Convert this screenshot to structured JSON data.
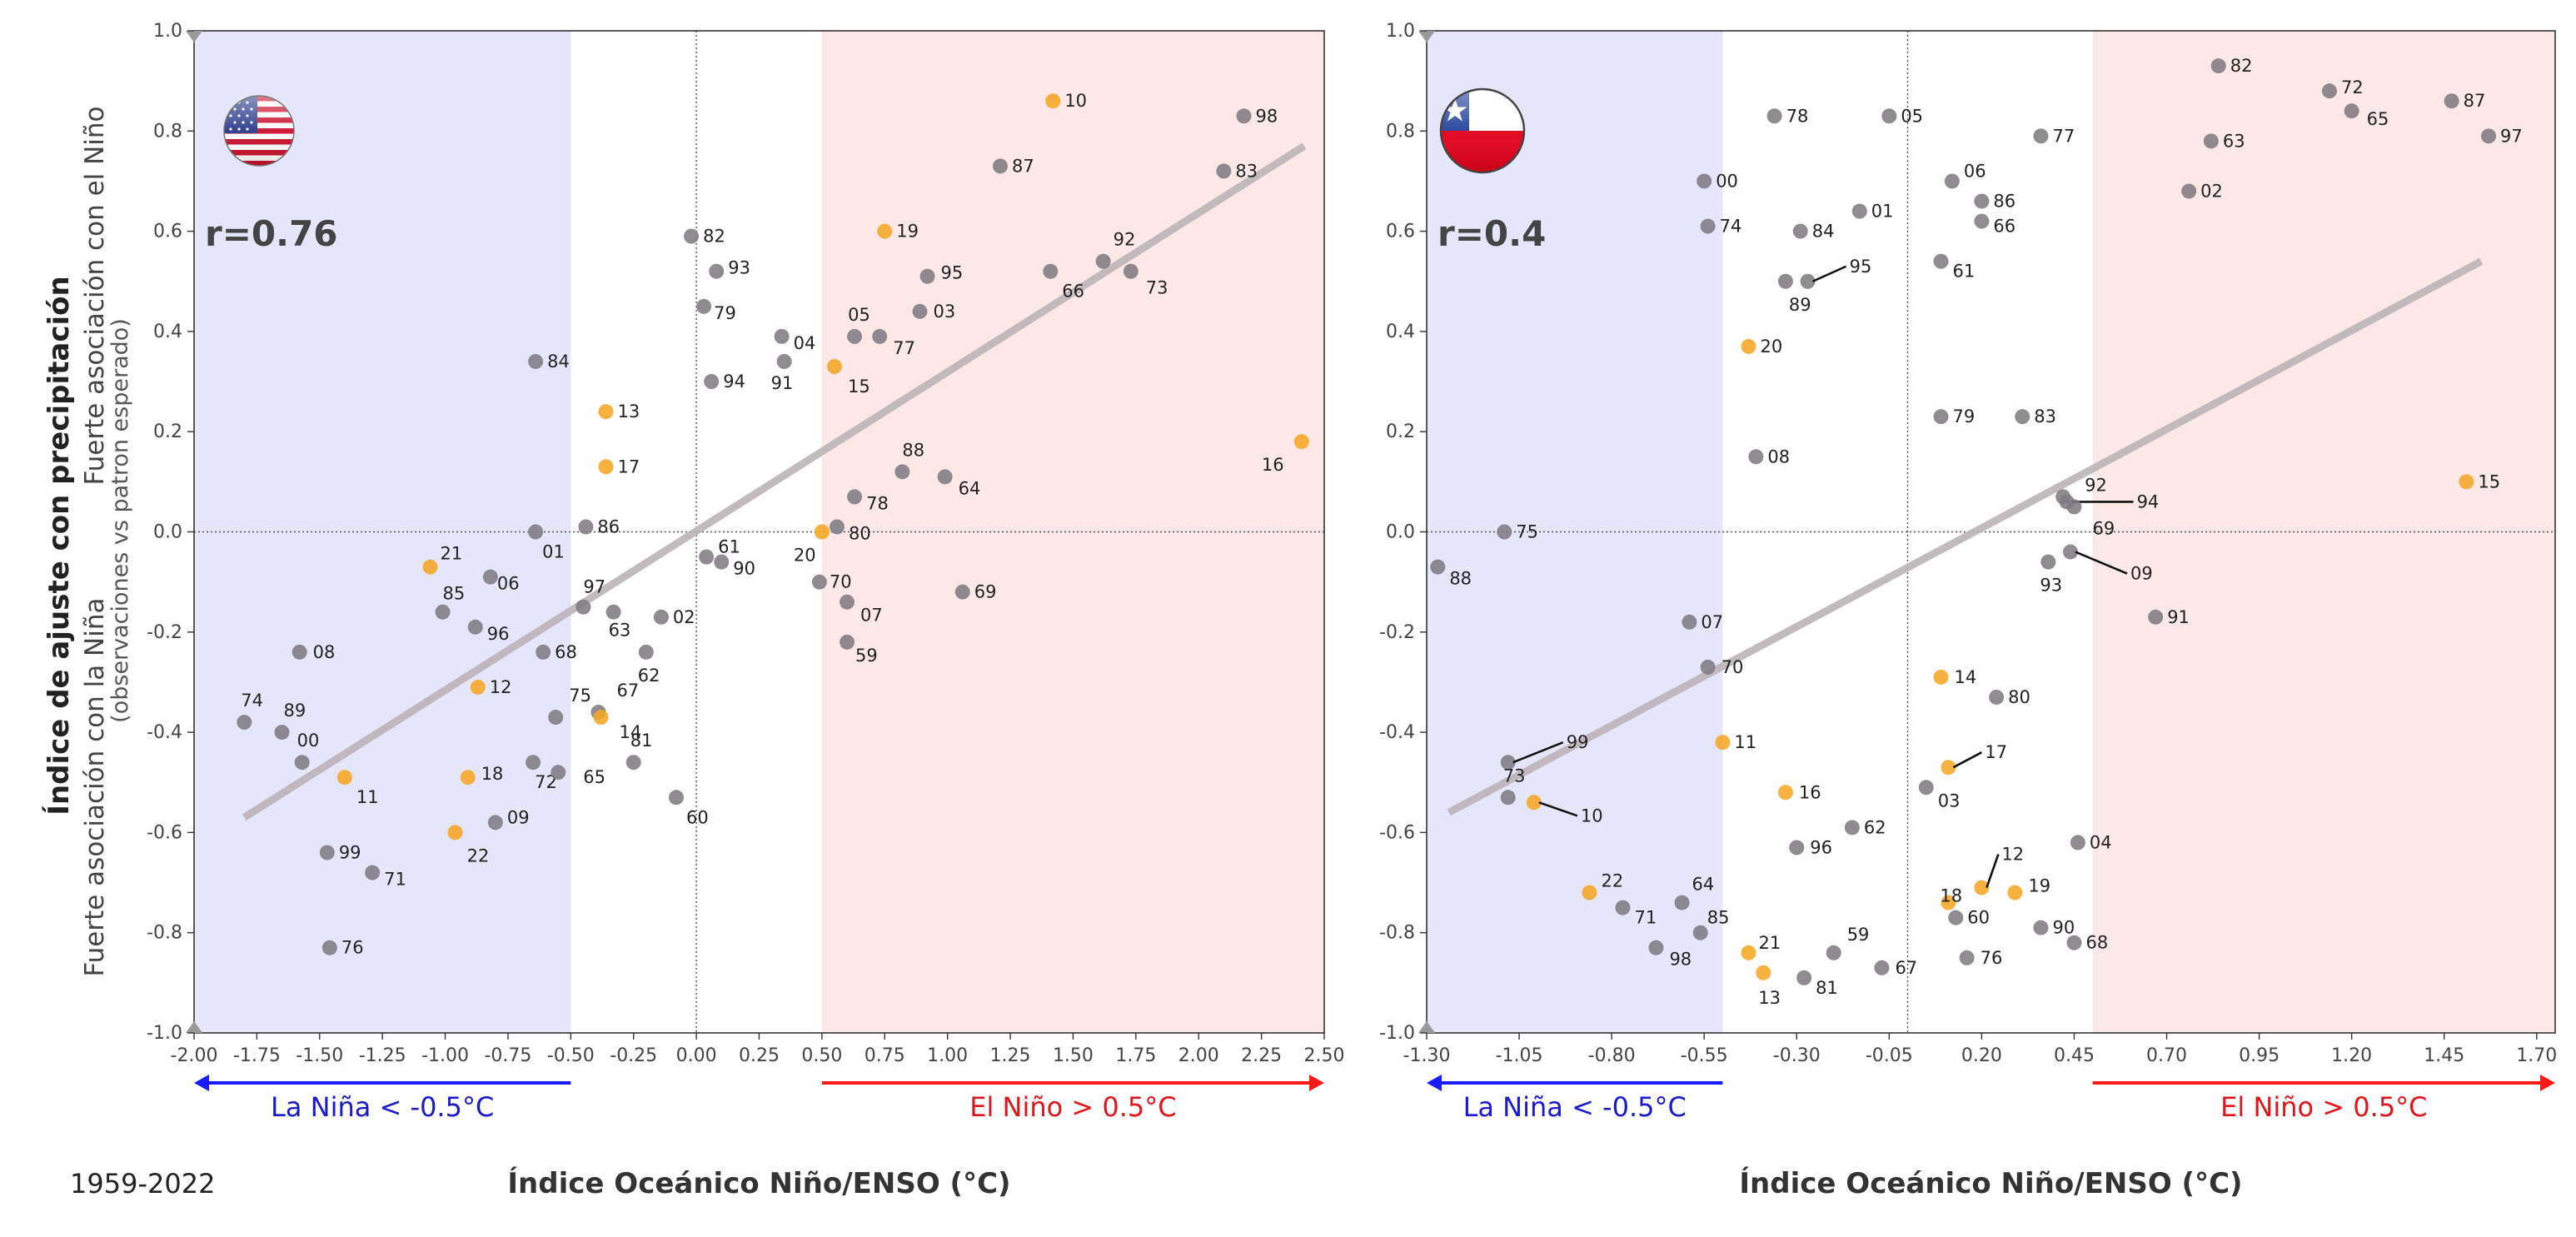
{
  "figure": {
    "period": "1959-2022",
    "y_title_main": "Índice de ajuste con precipitación",
    "y_title_top": "Fuerte asociación con el Niño",
    "y_title_bottom": "Fuerte asociación con la Niña",
    "y_title_note": "(observaciones vs patron esperado)",
    "colors": {
      "nina_band": "#e6e6fb",
      "nino_band": "#fde8e8",
      "point_gray": "#7f7b82",
      "point_orange": "#f5a623",
      "trend": "#bcb4b8",
      "nina_arrow": "#1a1aff",
      "nino_arrow": "#ff1a1a"
    }
  },
  "chart_data": [
    {
      "type": "scatter",
      "panel": "usa",
      "flag_icon": "usa-flag-icon",
      "r_label": "r=0.76",
      "xlabel": "Índice Oceánico Niño/ENSO (°C)",
      "xlim": [
        -2.0,
        2.5
      ],
      "ylim": [
        -1.0,
        1.0
      ],
      "xticks": [
        "-2.00",
        "-1.75",
        "-1.50",
        "-1.25",
        "-1.00",
        "-0.75",
        "-0.50",
        "-0.25",
        "0.00",
        "0.25",
        "0.50",
        "0.75",
        "1.00",
        "1.25",
        "1.50",
        "1.75",
        "2.00",
        "2.25",
        "2.50"
      ],
      "xtick_values": [
        -2.0,
        -1.75,
        -1.5,
        -1.25,
        -1.0,
        -0.75,
        -0.5,
        -0.25,
        0.0,
        0.25,
        0.5,
        0.75,
        1.0,
        1.25,
        1.5,
        1.75,
        2.0,
        2.25,
        2.5
      ],
      "yticks": [
        "-1.0",
        "-0.8",
        "-0.6",
        "-0.4",
        "-0.2",
        "0.0",
        "0.2",
        "0.4",
        "0.6",
        "0.8",
        "1.0"
      ],
      "ytick_values": [
        -1.0,
        -0.8,
        -0.6,
        -0.4,
        -0.2,
        0.0,
        0.2,
        0.4,
        0.6,
        0.8,
        1.0
      ],
      "nina_band": [
        -2.0,
        -0.5
      ],
      "nino_band": [
        0.5,
        2.5
      ],
      "nina_label": "La Niña < -0.5°C",
      "nino_label": "El Niño > 0.5°C",
      "trend": [
        [
          -1.8,
          -0.57
        ],
        [
          2.42,
          0.77
        ]
      ],
      "points": [
        {
          "label": "82",
          "x": -0.02,
          "y": 0.59,
          "c": "g"
        },
        {
          "label": "93",
          "x": 0.08,
          "y": 0.52,
          "c": "g"
        },
        {
          "label": "79",
          "x": 0.03,
          "y": 0.45,
          "c": "g"
        },
        {
          "label": "04",
          "x": 0.34,
          "y": 0.39,
          "c": "g"
        },
        {
          "label": "91",
          "x": 0.35,
          "y": 0.34,
          "c": "g"
        },
        {
          "label": "94",
          "x": 0.06,
          "y": 0.3,
          "c": "g"
        },
        {
          "label": "05",
          "x": 0.63,
          "y": 0.39,
          "c": "g"
        },
        {
          "label": "77",
          "x": 0.73,
          "y": 0.39,
          "c": "g"
        },
        {
          "label": "15",
          "x": 0.55,
          "y": 0.33,
          "c": "o"
        },
        {
          "label": "19",
          "x": 0.75,
          "y": 0.6,
          "c": "o"
        },
        {
          "label": "95",
          "x": 0.92,
          "y": 0.51,
          "c": "g"
        },
        {
          "label": "03",
          "x": 0.89,
          "y": 0.44,
          "c": "g"
        },
        {
          "label": "10",
          "x": 1.42,
          "y": 0.86,
          "c": "o"
        },
        {
          "label": "87",
          "x": 1.21,
          "y": 0.73,
          "c": "g"
        },
        {
          "label": "98",
          "x": 2.18,
          "y": 0.83,
          "c": "g"
        },
        {
          "label": "83",
          "x": 2.1,
          "y": 0.72,
          "c": "g"
        },
        {
          "label": "92",
          "x": 1.62,
          "y": 0.54,
          "c": "g"
        },
        {
          "label": "66",
          "x": 1.41,
          "y": 0.52,
          "c": "g"
        },
        {
          "label": "73",
          "x": 1.73,
          "y": 0.52,
          "c": "g"
        },
        {
          "label": "88",
          "x": 0.82,
          "y": 0.12,
          "c": "g"
        },
        {
          "label": "64",
          "x": 0.99,
          "y": 0.11,
          "c": "g"
        },
        {
          "label": "78",
          "x": 0.63,
          "y": 0.07,
          "c": "g"
        },
        {
          "label": "16",
          "x": 2.41,
          "y": 0.18,
          "c": "o"
        },
        {
          "label": "80",
          "x": 0.56,
          "y": 0.01,
          "c": "g"
        },
        {
          "label": "20",
          "x": 0.5,
          "y": 0.0,
          "c": "o"
        },
        {
          "label": "61",
          "x": 0.04,
          "y": -0.05,
          "c": "g"
        },
        {
          "label": "90",
          "x": 0.1,
          "y": -0.06,
          "c": "g"
        },
        {
          "label": "70",
          "x": 0.49,
          "y": -0.1,
          "c": "g"
        },
        {
          "label": "07",
          "x": 0.6,
          "y": -0.14,
          "c": "g"
        },
        {
          "label": "59",
          "x": 0.6,
          "y": -0.22,
          "c": "g"
        },
        {
          "label": "69",
          "x": 1.06,
          "y": -0.12,
          "c": "g"
        },
        {
          "label": "84",
          "x": -0.64,
          "y": 0.34,
          "c": "g"
        },
        {
          "label": "13",
          "x": -0.36,
          "y": 0.24,
          "c": "o"
        },
        {
          "label": "17",
          "x": -0.36,
          "y": 0.13,
          "c": "o"
        },
        {
          "label": "86",
          "x": -0.44,
          "y": 0.01,
          "c": "g"
        },
        {
          "label": "01",
          "x": -0.64,
          "y": 0.0,
          "c": "g"
        },
        {
          "label": "21",
          "x": -1.06,
          "y": -0.07,
          "c": "o"
        },
        {
          "label": "06",
          "x": -0.82,
          "y": -0.09,
          "c": "g"
        },
        {
          "label": "85",
          "x": -1.01,
          "y": -0.16,
          "c": "g"
        },
        {
          "label": "96",
          "x": -0.88,
          "y": -0.19,
          "c": "g"
        },
        {
          "label": "97",
          "x": -0.45,
          "y": -0.15,
          "c": "g"
        },
        {
          "label": "63",
          "x": -0.33,
          "y": -0.16,
          "c": "g"
        },
        {
          "label": "02",
          "x": -0.14,
          "y": -0.17,
          "c": "g"
        },
        {
          "label": "68",
          "x": -0.61,
          "y": -0.24,
          "c": "g"
        },
        {
          "label": "62",
          "x": -0.2,
          "y": -0.24,
          "c": "g"
        },
        {
          "label": "08",
          "x": -1.58,
          "y": -0.24,
          "c": "g"
        },
        {
          "label": "12",
          "x": -0.87,
          "y": -0.31,
          "c": "o"
        },
        {
          "label": "75",
          "x": -0.56,
          "y": -0.37,
          "c": "g"
        },
        {
          "label": "67",
          "x": -0.39,
          "y": -0.36,
          "c": "g"
        },
        {
          "label": "14",
          "x": -0.38,
          "y": -0.37,
          "c": "o"
        },
        {
          "label": "72",
          "x": -0.65,
          "y": -0.46,
          "c": "g"
        },
        {
          "label": "65",
          "x": -0.55,
          "y": -0.48,
          "c": "g"
        },
        {
          "label": "81",
          "x": -0.25,
          "y": -0.46,
          "c": "g"
        },
        {
          "label": "60",
          "x": -0.08,
          "y": -0.53,
          "c": "g"
        },
        {
          "label": "74",
          "x": -1.8,
          "y": -0.38,
          "c": "g"
        },
        {
          "label": "89",
          "x": -1.65,
          "y": -0.4,
          "c": "g"
        },
        {
          "label": "00",
          "x": -1.57,
          "y": -0.46,
          "c": "g"
        },
        {
          "label": "11",
          "x": -1.4,
          "y": -0.49,
          "c": "o"
        },
        {
          "label": "18",
          "x": -0.91,
          "y": -0.49,
          "c": "o"
        },
        {
          "label": "09",
          "x": -0.8,
          "y": -0.58,
          "c": "g"
        },
        {
          "label": "22",
          "x": -0.96,
          "y": -0.6,
          "c": "o"
        },
        {
          "label": "99",
          "x": -1.47,
          "y": -0.64,
          "c": "g"
        },
        {
          "label": "71",
          "x": -1.29,
          "y": -0.68,
          "c": "g"
        },
        {
          "label": "76",
          "x": -1.46,
          "y": -0.83,
          "c": "g"
        }
      ]
    },
    {
      "type": "scatter",
      "panel": "chile",
      "flag_icon": "chile-flag-icon",
      "r_label": "r=0.4",
      "xlabel": "Índice Oceánico Niño/ENSO (°C)",
      "xlim": [
        -1.3,
        1.75
      ],
      "ylim": [
        -1.0,
        1.0
      ],
      "xticks": [
        "-1.30",
        "-1.05",
        "-0.80",
        "-0.55",
        "-0.30",
        "-0.05",
        "0.20",
        "0.45",
        "0.70",
        "0.95",
        "1.20",
        "1.45",
        "1.70"
      ],
      "xtick_values": [
        -1.3,
        -1.05,
        -0.8,
        -0.55,
        -0.3,
        -0.05,
        0.2,
        0.45,
        0.7,
        0.95,
        1.2,
        1.45,
        1.7
      ],
      "yticks": [
        "-1.0",
        "-0.8",
        "-0.6",
        "-0.4",
        "-0.2",
        "0.0",
        "0.2",
        "0.4",
        "0.6",
        "0.8",
        "1.0"
      ],
      "ytick_values": [
        -1.0,
        -0.8,
        -0.6,
        -0.4,
        -0.2,
        0.0,
        0.2,
        0.4,
        0.6,
        0.8,
        1.0
      ],
      "nina_band": [
        -1.3,
        -0.5
      ],
      "nino_band": [
        0.5,
        1.75
      ],
      "nina_label": "La Niña < -0.5°C",
      "nino_label": "El Niño > 0.5°C",
      "trend": [
        [
          -1.24,
          -0.56
        ],
        [
          1.55,
          0.54
        ]
      ],
      "points": [
        {
          "label": "78",
          "x": -0.36,
          "y": 0.83,
          "c": "g"
        },
        {
          "label": "05",
          "x": -0.05,
          "y": 0.83,
          "c": "g"
        },
        {
          "label": "00",
          "x": -0.55,
          "y": 0.7,
          "c": "g"
        },
        {
          "label": "74",
          "x": -0.54,
          "y": 0.61,
          "c": "g"
        },
        {
          "label": "84",
          "x": -0.29,
          "y": 0.6,
          "c": "g"
        },
        {
          "label": "01",
          "x": -0.13,
          "y": 0.64,
          "c": "g"
        },
        {
          "label": "95",
          "x": -0.27,
          "y": 0.5,
          "c": "g"
        },
        {
          "label": "89",
          "x": -0.33,
          "y": 0.5,
          "c": "g"
        },
        {
          "label": "20",
          "x": -0.43,
          "y": 0.37,
          "c": "o"
        },
        {
          "label": "08",
          "x": -0.41,
          "y": 0.15,
          "c": "g"
        },
        {
          "label": "06",
          "x": 0.12,
          "y": 0.7,
          "c": "g"
        },
        {
          "label": "86",
          "x": 0.2,
          "y": 0.66,
          "c": "g"
        },
        {
          "label": "66",
          "x": 0.2,
          "y": 0.62,
          "c": "g"
        },
        {
          "label": "61",
          "x": 0.09,
          "y": 0.54,
          "c": "g"
        },
        {
          "label": "77",
          "x": 0.36,
          "y": 0.79,
          "c": "g"
        },
        {
          "label": "79",
          "x": 0.09,
          "y": 0.23,
          "c": "g"
        },
        {
          "label": "83",
          "x": 0.31,
          "y": 0.23,
          "c": "g"
        },
        {
          "label": "82",
          "x": 0.84,
          "y": 0.93,
          "c": "g"
        },
        {
          "label": "72",
          "x": 1.14,
          "y": 0.88,
          "c": "g"
        },
        {
          "label": "65",
          "x": 1.2,
          "y": 0.84,
          "c": "g"
        },
        {
          "label": "63",
          "x": 0.82,
          "y": 0.78,
          "c": "g"
        },
        {
          "label": "87",
          "x": 1.47,
          "y": 0.86,
          "c": "g"
        },
        {
          "label": "97",
          "x": 1.57,
          "y": 0.79,
          "c": "g"
        },
        {
          "label": "02",
          "x": 0.76,
          "y": 0.68,
          "c": "g"
        },
        {
          "label": "92",
          "x": 0.42,
          "y": 0.07,
          "c": "g"
        },
        {
          "label": "94",
          "x": 0.43,
          "y": 0.06,
          "c": "g"
        },
        {
          "label": "69",
          "x": 0.45,
          "y": 0.05,
          "c": "g"
        },
        {
          "label": "09",
          "x": 0.44,
          "y": -0.04,
          "c": "g"
        },
        {
          "label": "93",
          "x": 0.38,
          "y": -0.06,
          "c": "g"
        },
        {
          "label": "91",
          "x": 0.67,
          "y": -0.17,
          "c": "g"
        },
        {
          "label": "15",
          "x": 1.51,
          "y": 0.1,
          "c": "o"
        },
        {
          "label": "75",
          "x": -1.09,
          "y": 0.0,
          "c": "g"
        },
        {
          "label": "88",
          "x": -1.27,
          "y": -0.07,
          "c": "g"
        },
        {
          "label": "07",
          "x": -0.59,
          "y": -0.18,
          "c": "g"
        },
        {
          "label": "70",
          "x": -0.54,
          "y": -0.27,
          "c": "g"
        },
        {
          "label": "14",
          "x": 0.09,
          "y": -0.29,
          "c": "o"
        },
        {
          "label": "80",
          "x": 0.24,
          "y": -0.33,
          "c": "g"
        },
        {
          "label": "11",
          "x": -0.5,
          "y": -0.42,
          "c": "o"
        },
        {
          "label": "99",
          "x": -1.08,
          "y": -0.46,
          "c": "g"
        },
        {
          "label": "73",
          "x": -1.08,
          "y": -0.53,
          "c": "g"
        },
        {
          "label": "10",
          "x": -1.01,
          "y": -0.54,
          "c": "o"
        },
        {
          "label": "17",
          "x": 0.11,
          "y": -0.47,
          "c": "o"
        },
        {
          "label": "03",
          "x": 0.05,
          "y": -0.51,
          "c": "g"
        },
        {
          "label": "16",
          "x": -0.33,
          "y": -0.52,
          "c": "o"
        },
        {
          "label": "62",
          "x": -0.15,
          "y": -0.59,
          "c": "g"
        },
        {
          "label": "96",
          "x": -0.3,
          "y": -0.63,
          "c": "g"
        },
        {
          "label": "04",
          "x": 0.46,
          "y": -0.62,
          "c": "g"
        },
        {
          "label": "12",
          "x": 0.2,
          "y": -0.71,
          "c": "o"
        },
        {
          "label": "18",
          "x": 0.11,
          "y": -0.74,
          "c": "o"
        },
        {
          "label": "19",
          "x": 0.29,
          "y": -0.72,
          "c": "o"
        },
        {
          "label": "60",
          "x": 0.13,
          "y": -0.77,
          "c": "g"
        },
        {
          "label": "90",
          "x": 0.36,
          "y": -0.79,
          "c": "g"
        },
        {
          "label": "68",
          "x": 0.45,
          "y": -0.82,
          "c": "g"
        },
        {
          "label": "76",
          "x": 0.16,
          "y": -0.85,
          "c": "g"
        },
        {
          "label": "22",
          "x": -0.86,
          "y": -0.72,
          "c": "o"
        },
        {
          "label": "64",
          "x": -0.61,
          "y": -0.74,
          "c": "g"
        },
        {
          "label": "71",
          "x": -0.77,
          "y": -0.75,
          "c": "g"
        },
        {
          "label": "85",
          "x": -0.56,
          "y": -0.8,
          "c": "g"
        },
        {
          "label": "98",
          "x": -0.68,
          "y": -0.83,
          "c": "g"
        },
        {
          "label": "21",
          "x": -0.43,
          "y": -0.84,
          "c": "o"
        },
        {
          "label": "13",
          "x": -0.39,
          "y": -0.88,
          "c": "o"
        },
        {
          "label": "59",
          "x": -0.2,
          "y": -0.84,
          "c": "g"
        },
        {
          "label": "81",
          "x": -0.28,
          "y": -0.89,
          "c": "g"
        },
        {
          "label": "67",
          "x": -0.07,
          "y": -0.87,
          "c": "g"
        }
      ]
    }
  ]
}
